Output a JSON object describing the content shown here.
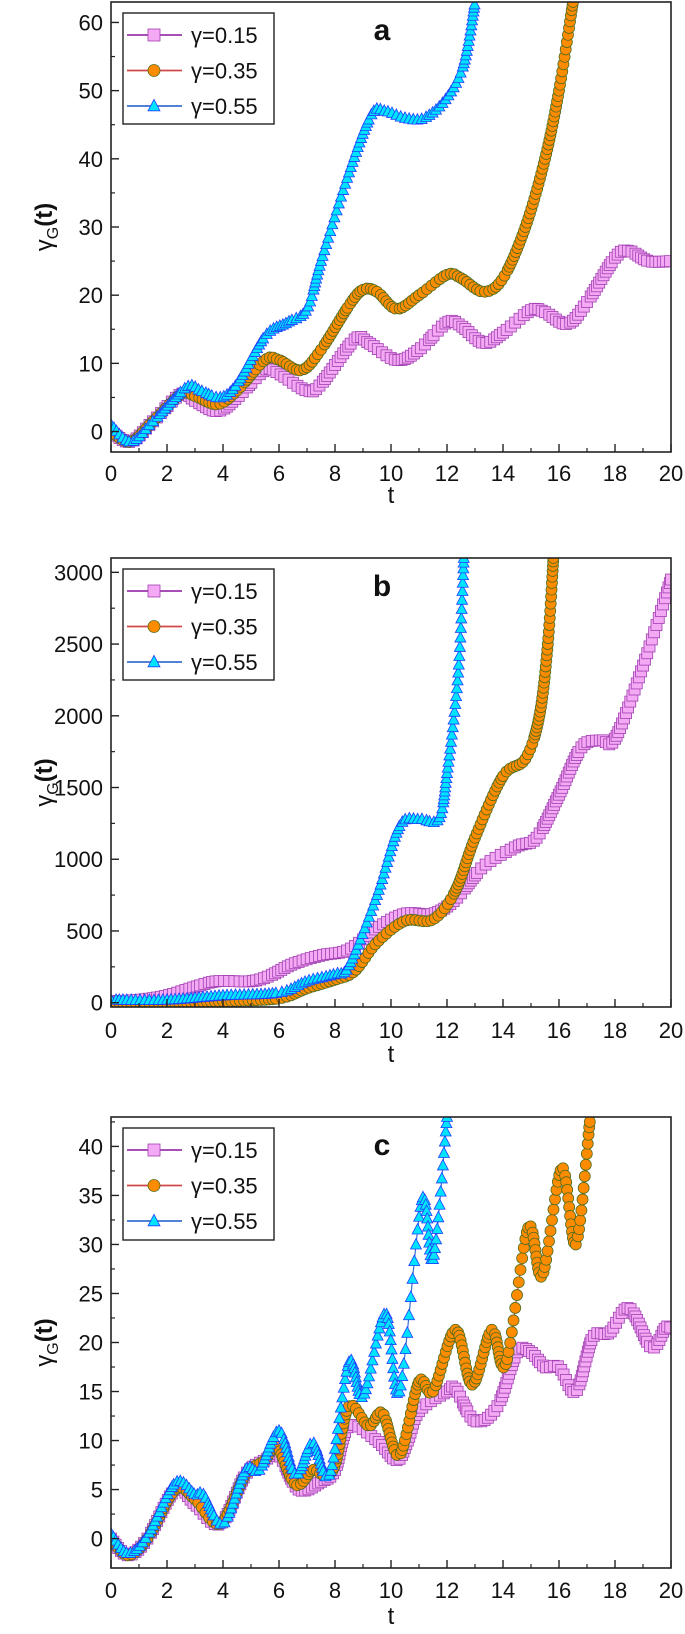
{
  "chart_data": [
    {
      "type": "scatter",
      "panel_label": "a",
      "xlabel": "t",
      "ylabel": {
        "base": "γ",
        "sub": "G",
        "suffix": "(t)"
      },
      "xlim": [
        0,
        20
      ],
      "ylim": [
        -3,
        63
      ],
      "xticks": [
        "0",
        "2",
        "4",
        "6",
        "8",
        "10",
        "12",
        "14",
        "16",
        "18",
        "20"
      ],
      "yticks": [
        "0",
        "10",
        "20",
        "30",
        "40",
        "50",
        "60"
      ],
      "grid": false,
      "legend_position": "top-left",
      "series": [
        {
          "name": "γ=0.15",
          "marker": "square",
          "fill": "#f3a9f3",
          "stroke": "#a23fb3",
          "line": "#9b35ad",
          "points": [
            [
              0,
              0
            ],
            [
              0.7,
              -1.5
            ],
            [
              1.5,
              1.5
            ],
            [
              2.5,
              5.5
            ],
            [
              3,
              4.5
            ],
            [
              3.8,
              3
            ],
            [
              4.5,
              5
            ],
            [
              5.5,
              9
            ],
            [
              6,
              8.5
            ],
            [
              7,
              6
            ],
            [
              7.5,
              7
            ],
            [
              8.7,
              13.5
            ],
            [
              9.2,
              13
            ],
            [
              10.2,
              10.5
            ],
            [
              11,
              12
            ],
            [
              12,
              16
            ],
            [
              12.5,
              15.5
            ],
            [
              13.3,
              13
            ],
            [
              14,
              14.5
            ],
            [
              15,
              17.8
            ],
            [
              15.5,
              17.5
            ],
            [
              16.3,
              15.8
            ],
            [
              17,
              19
            ],
            [
              18,
              25.5
            ],
            [
              18.5,
              26.5
            ],
            [
              19.2,
              25
            ],
            [
              20,
              25
            ]
          ]
        },
        {
          "name": "γ=0.35",
          "marker": "circle",
          "fill": "#ff8c00",
          "stroke": "#4f6b1f",
          "line": "#d04848",
          "points": [
            [
              0,
              0
            ],
            [
              0.7,
              -1.5
            ],
            [
              1.5,
              1.5
            ],
            [
              2.5,
              5.5
            ],
            [
              3,
              5.2
            ],
            [
              3.8,
              4
            ],
            [
              4.5,
              6
            ],
            [
              5.5,
              10.5
            ],
            [
              6,
              10.5
            ],
            [
              6.8,
              9
            ],
            [
              7.5,
              12
            ],
            [
              8.5,
              18.5
            ],
            [
              9,
              20.8
            ],
            [
              9.5,
              20.5
            ],
            [
              10.2,
              18
            ],
            [
              11,
              20
            ],
            [
              12,
              23
            ],
            [
              12.5,
              22.5
            ],
            [
              13.3,
              20.5
            ],
            [
              14,
              22.5
            ],
            [
              14.8,
              30
            ],
            [
              15.5,
              40
            ],
            [
              16,
              50
            ],
            [
              16.5,
              63
            ]
          ]
        },
        {
          "name": "γ=0.55",
          "marker": "triangle",
          "fill": "#00e3ff",
          "stroke": "#1f3fff",
          "line": "#3a6fd0",
          "points": [
            [
              0,
              1
            ],
            [
              0.7,
              -1.5
            ],
            [
              1.5,
              1.5
            ],
            [
              2.7,
              6.5
            ],
            [
              3.2,
              6
            ],
            [
              3.9,
              5
            ],
            [
              4.5,
              7
            ],
            [
              5.5,
              14
            ],
            [
              6.3,
              16
            ],
            [
              7,
              18
            ],
            [
              7.5,
              25
            ],
            [
              8.5,
              38
            ],
            [
              9.3,
              46.5
            ],
            [
              9.8,
              47
            ],
            [
              10.5,
              46
            ],
            [
              11.2,
              46
            ],
            [
              12,
              49
            ],
            [
              12.6,
              54
            ],
            [
              13,
              63
            ]
          ]
        }
      ]
    },
    {
      "type": "scatter",
      "panel_label": "b",
      "xlabel": "t",
      "ylabel": {
        "base": "γ",
        "sub": "G",
        "suffix": "(t)"
      },
      "xlim": [
        0,
        20
      ],
      "ylim": [
        -30,
        3100
      ],
      "xticks": [
        "0",
        "2",
        "4",
        "6",
        "8",
        "10",
        "12",
        "14",
        "16",
        "18",
        "20"
      ],
      "yticks": [
        "0",
        "500",
        "1000",
        "1500",
        "2000",
        "2500",
        "3000"
      ],
      "grid": false,
      "legend_position": "top-left",
      "series": [
        {
          "name": "γ=0.15",
          "marker": "square",
          "fill": "#f3a9f3",
          "stroke": "#a23fb3",
          "line": "#9b35ad",
          "points": [
            [
              0,
              10
            ],
            [
              1,
              20
            ],
            [
              2,
              50
            ],
            [
              3,
              110
            ],
            [
              3.8,
              150
            ],
            [
              5,
              150
            ],
            [
              5.7,
              190
            ],
            [
              6.5,
              270
            ],
            [
              7.5,
              330
            ],
            [
              8.5,
              370
            ],
            [
              9.5,
              520
            ],
            [
              10.5,
              620
            ],
            [
              11.5,
              620
            ],
            [
              12.3,
              720
            ],
            [
              13.3,
              950
            ],
            [
              14.5,
              1090
            ],
            [
              15.2,
              1150
            ],
            [
              16,
              1450
            ],
            [
              16.8,
              1780
            ],
            [
              17.5,
              1830
            ],
            [
              18,
              1840
            ],
            [
              19,
              2350
            ],
            [
              20,
              2950
            ]
          ]
        },
        {
          "name": "γ=0.35",
          "marker": "circle",
          "fill": "#ff8c00",
          "stroke": "#4f6b1f",
          "line": "#d04848",
          "points": [
            [
              0,
              0
            ],
            [
              2,
              0
            ],
            [
              4,
              10
            ],
            [
              6,
              30
            ],
            [
              7,
              100
            ],
            [
              8,
              160
            ],
            [
              8.7,
              220
            ],
            [
              9.5,
              420
            ],
            [
              10.5,
              570
            ],
            [
              11.5,
              580
            ],
            [
              12.3,
              780
            ],
            [
              13,
              1150
            ],
            [
              14,
              1580
            ],
            [
              14.8,
              1700
            ],
            [
              15.3,
              2000
            ],
            [
              15.6,
              2500
            ],
            [
              15.8,
              3100
            ]
          ]
        },
        {
          "name": "γ=0.55",
          "marker": "triangle",
          "fill": "#00e3ff",
          "stroke": "#1f3fff",
          "line": "#3a6fd0",
          "points": [
            [
              0,
              20
            ],
            [
              2,
              20
            ],
            [
              4,
              50
            ],
            [
              6,
              70
            ],
            [
              7,
              150
            ],
            [
              8,
              200
            ],
            [
              8.5,
              260
            ],
            [
              9.5,
              750
            ],
            [
              10.3,
              1230
            ],
            [
              11,
              1280
            ],
            [
              11.7,
              1280
            ],
            [
              12,
              1600
            ],
            [
              12.4,
              2300
            ],
            [
              12.6,
              3100
            ]
          ]
        }
      ]
    },
    {
      "type": "scatter",
      "panel_label": "c",
      "xlabel": "t",
      "ylabel": {
        "base": "γ",
        "sub": "G",
        "suffix": "(t)"
      },
      "xlim": [
        0,
        20
      ],
      "ylim": [
        -3,
        43
      ],
      "xticks": [
        "0",
        "2",
        "4",
        "6",
        "8",
        "10",
        "12",
        "14",
        "16",
        "18",
        "20"
      ],
      "yticks": [
        "0",
        "5",
        "10",
        "15",
        "20",
        "25",
        "30",
        "35",
        "40"
      ],
      "grid": false,
      "legend_position": "top-left",
      "series": [
        {
          "name": "γ=0.15",
          "marker": "square",
          "fill": "#f3a9f3",
          "stroke": "#a23fb3",
          "line": "#9b35ad",
          "points": [
            [
              0,
              0
            ],
            [
              0.6,
              -1.7
            ],
            [
              1.3,
              0
            ],
            [
              2.3,
              5
            ],
            [
              3,
              3.5
            ],
            [
              3.9,
              1.5
            ],
            [
              4.8,
              6.5
            ],
            [
              5.5,
              8
            ],
            [
              6,
              8.5
            ],
            [
              6.7,
              5
            ],
            [
              7.5,
              5.8
            ],
            [
              8,
              7
            ],
            [
              8.5,
              11.5
            ],
            [
              9.5,
              10
            ],
            [
              10.2,
              8
            ],
            [
              10.6,
              10
            ],
            [
              11,
              13
            ],
            [
              12,
              15
            ],
            [
              12.3,
              15.3
            ],
            [
              13,
              12
            ],
            [
              13.8,
              13.5
            ],
            [
              14.5,
              19
            ],
            [
              15,
              19
            ],
            [
              15.5,
              17.5
            ],
            [
              16,
              17.5
            ],
            [
              16.6,
              15
            ],
            [
              17.2,
              20.5
            ],
            [
              17.8,
              21
            ],
            [
              18.5,
              23.5
            ],
            [
              19.3,
              19.5
            ],
            [
              19.8,
              21.5
            ],
            [
              20,
              21.5
            ]
          ]
        },
        {
          "name": "γ=0.35",
          "marker": "circle",
          "fill": "#ff8c00",
          "stroke": "#4f6b1f",
          "line": "#d04848",
          "points": [
            [
              0,
              0
            ],
            [
              0.6,
              -1.7
            ],
            [
              1.3,
              0
            ],
            [
              2.3,
              5
            ],
            [
              3,
              4
            ],
            [
              3.9,
              1.5
            ],
            [
              4.8,
              6.5
            ],
            [
              5.5,
              8
            ],
            [
              5.9,
              9.5
            ],
            [
              6.6,
              5.5
            ],
            [
              7.2,
              7
            ],
            [
              7.6,
              6.5
            ],
            [
              8,
              7.5
            ],
            [
              8.5,
              13.5
            ],
            [
              9.2,
              11.5
            ],
            [
              9.7,
              12.8
            ],
            [
              10.3,
              8.5
            ],
            [
              11,
              16
            ],
            [
              11.5,
              15
            ],
            [
              12.3,
              21.3
            ],
            [
              12.9,
              15.7
            ],
            [
              13.6,
              21.3
            ],
            [
              14.1,
              17.8
            ],
            [
              14.9,
              31.7
            ],
            [
              15.4,
              26.8
            ],
            [
              16.1,
              37.8
            ],
            [
              16.6,
              30
            ],
            [
              17.1,
              42.5
            ]
          ]
        },
        {
          "name": "γ=0.55",
          "marker": "triangle",
          "fill": "#00e3ff",
          "stroke": "#1f3fff",
          "line": "#3a6fd0",
          "points": [
            [
              0,
              0.5
            ],
            [
              0.6,
              -1.5
            ],
            [
              1.3,
              0.3
            ],
            [
              2.3,
              5.7
            ],
            [
              3,
              4.5
            ],
            [
              3.3,
              4.5
            ],
            [
              4,
              1.5
            ],
            [
              4.8,
              7
            ],
            [
              5.3,
              7
            ],
            [
              6,
              11
            ],
            [
              6.6,
              6.5
            ],
            [
              7.2,
              9.8
            ],
            [
              7.8,
              6.5
            ],
            [
              8.5,
              18
            ],
            [
              9,
              14.5
            ],
            [
              9.8,
              23
            ],
            [
              10.3,
              15
            ],
            [
              11.1,
              34.5
            ],
            [
              11.5,
              28.5
            ],
            [
              12,
              43
            ]
          ]
        }
      ]
    }
  ]
}
